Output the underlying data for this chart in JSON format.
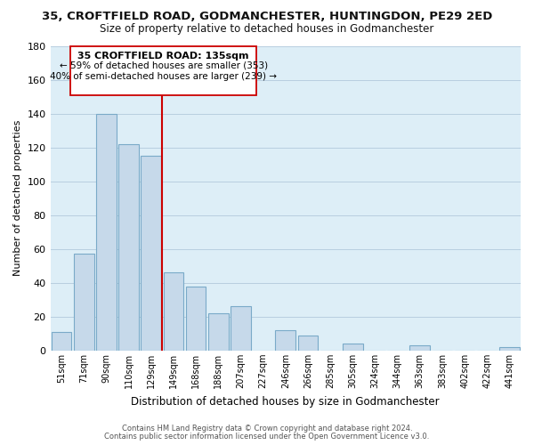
{
  "title": "35, CROFTFIELD ROAD, GODMANCHESTER, HUNTINGDON, PE29 2ED",
  "subtitle": "Size of property relative to detached houses in Godmanchester",
  "xlabel": "Distribution of detached houses by size in Godmanchester",
  "ylabel": "Number of detached properties",
  "bar_labels": [
    "51sqm",
    "71sqm",
    "90sqm",
    "110sqm",
    "129sqm",
    "149sqm",
    "168sqm",
    "188sqm",
    "207sqm",
    "227sqm",
    "246sqm",
    "266sqm",
    "285sqm",
    "305sqm",
    "324sqm",
    "344sqm",
    "363sqm",
    "383sqm",
    "402sqm",
    "422sqm",
    "441sqm"
  ],
  "bar_values": [
    11,
    57,
    140,
    122,
    115,
    46,
    38,
    22,
    26,
    0,
    12,
    9,
    0,
    4,
    0,
    0,
    3,
    0,
    0,
    0,
    2
  ],
  "bar_color": "#c6d9ea",
  "bar_edge_color": "#7aaac8",
  "vline_x": 4.5,
  "vline_color": "#cc0000",
  "ylim": [
    0,
    180
  ],
  "yticks": [
    0,
    20,
    40,
    60,
    80,
    100,
    120,
    140,
    160,
    180
  ],
  "annotation_title": "35 CROFTFIELD ROAD: 135sqm",
  "annotation_line1": "← 59% of detached houses are smaller (353)",
  "annotation_line2": "40% of semi-detached houses are larger (239) →",
  "annotation_box_color": "#ffffff",
  "annotation_box_edge": "#cc0000",
  "footer1": "Contains HM Land Registry data © Crown copyright and database right 2024.",
  "footer2": "Contains public sector information licensed under the Open Government Licence v3.0.",
  "background_color": "#ffffff",
  "axes_bg_color": "#ddeef7",
  "grid_color": "#b8cfe0"
}
